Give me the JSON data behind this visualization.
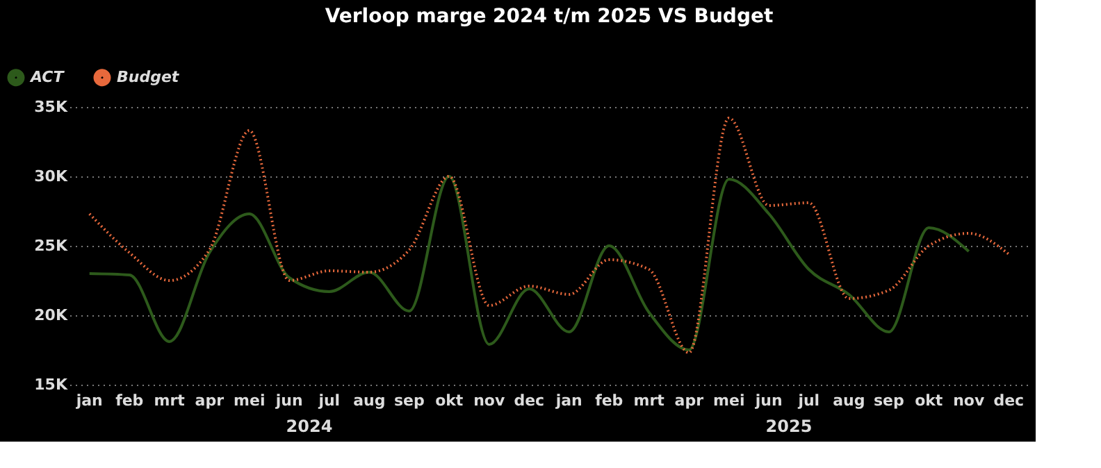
{
  "chart_data": {
    "type": "line",
    "title": "Verloop marge 2024 t/m 2025 VS Budget",
    "categories": [
      "jan",
      "feb",
      "mrt",
      "apr",
      "mei",
      "jun",
      "jul",
      "aug",
      "sep",
      "okt",
      "nov",
      "dec",
      "jan",
      "feb",
      "mrt",
      "apr",
      "mei",
      "jun",
      "jul",
      "aug",
      "sep",
      "okt",
      "nov",
      "dec"
    ],
    "annotations": [
      "2024",
      "2025"
    ],
    "series": [
      {
        "name": "ACT",
        "color": "#2d5a1b",
        "line_style": "solid",
        "values": [
          23.0,
          22.9,
          18.1,
          24.5,
          27.3,
          22.7,
          21.7,
          23.1,
          20.3,
          30.0,
          17.9,
          21.9,
          18.8,
          25.0,
          20.2,
          17.5,
          29.8,
          27.3,
          23.3,
          21.5,
          18.8,
          26.3,
          24.6,
          null
        ]
      },
      {
        "name": "Budget",
        "color": "#e8693c",
        "line_style": "dotted",
        "values": [
          27.3,
          24.5,
          22.5,
          24.7,
          33.3,
          22.5,
          23.2,
          23.1,
          24.7,
          30.0,
          20.7,
          22.1,
          21.5,
          24.0,
          23.3,
          17.3,
          34.2,
          27.9,
          28.1,
          21.2,
          21.8,
          25.0,
          25.9,
          24.4
        ]
      }
    ],
    "ylim": [
      15,
      35
    ],
    "yticks": [
      {
        "value": 15,
        "label": "15K"
      },
      {
        "value": 20,
        "label": "20K"
      },
      {
        "value": 25,
        "label": "25K"
      },
      {
        "value": 30,
        "label": "30K"
      },
      {
        "value": 35,
        "label": "35K"
      }
    ],
    "grid": "y",
    "legend": "top left",
    "marker": "none"
  }
}
